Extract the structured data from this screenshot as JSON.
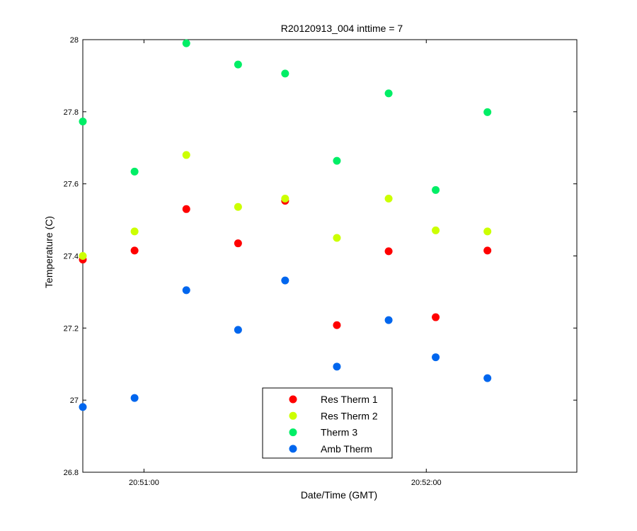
{
  "chart_data": {
    "type": "scatter",
    "title": "R20120913_004 inttime = 7",
    "xlabel": "Date/Time (GMT)",
    "ylabel": "Temperature (C)",
    "x_unit": "time (GMT, HH:MM:SS)",
    "xlim": [
      "20:50:47",
      "20:52:32"
    ],
    "ylim": [
      26.8,
      28
    ],
    "y_ticks": [
      26.8,
      27,
      27.2,
      27.4,
      27.6,
      27.8,
      28
    ],
    "y_tick_labels": [
      "26.8",
      "27",
      "27.2",
      "27.4",
      "27.6",
      "27.8",
      "28"
    ],
    "x_ticks": [
      "20:51:00",
      "20:52:00"
    ],
    "x_tick_labels": [
      "20:51:00",
      "20:52:00"
    ],
    "grid": false,
    "legend_position": "bottom-center",
    "x": [
      "20:50:47",
      "20:50:58",
      "20:51:09",
      "20:51:20",
      "20:51:30",
      "20:51:41",
      "20:51:52",
      "20:52:02",
      "20:52:13"
    ],
    "series": [
      {
        "name": "Res Therm 1",
        "color": "#ff0000",
        "values": [
          27.39,
          27.415,
          27.53,
          27.435,
          27.553,
          27.208,
          27.413,
          27.23,
          27.415
        ]
      },
      {
        "name": "Res Therm 2",
        "color": "#ccff00",
        "values": [
          27.4,
          27.468,
          27.68,
          27.536,
          27.559,
          27.45,
          27.559,
          27.471,
          27.468
        ]
      },
      {
        "name": "Therm 3",
        "color": "#00ee66",
        "values": [
          27.773,
          27.634,
          27.99,
          27.931,
          27.906,
          27.664,
          27.851,
          27.583,
          27.799
        ]
      },
      {
        "name": "Amb Therm",
        "color": "#0066ee",
        "values": [
          26.981,
          27.006,
          27.305,
          27.195,
          27.332,
          27.093,
          27.222,
          27.119,
          27.061
        ]
      }
    ]
  }
}
